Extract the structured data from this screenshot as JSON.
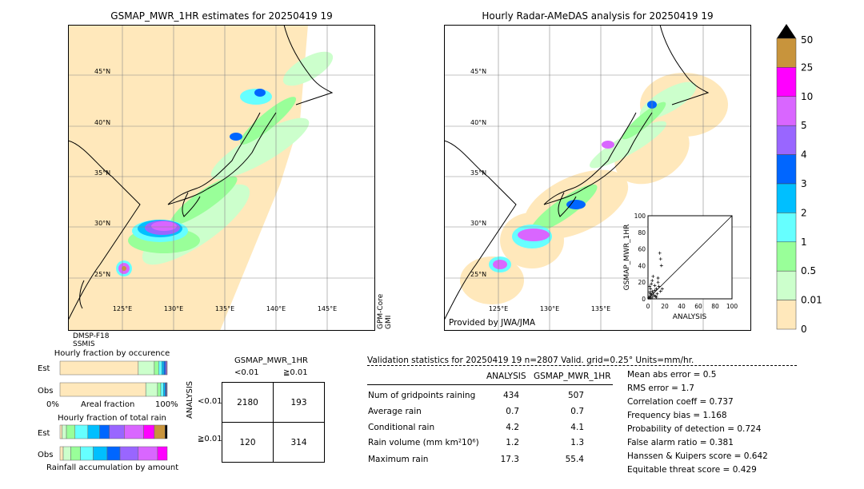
{
  "left_map": {
    "title": "GSMAP_MWR_1HR estimates for 20250419 19",
    "sensor_right": [
      "GPM-Core",
      "GMI"
    ],
    "sensor_bottom": [
      "DMSP-F18",
      "SSMIS"
    ]
  },
  "right_map": {
    "title": "Hourly Radar-AMeDAS analysis for 20250419 19",
    "credit": "Provided by JWA/JMA"
  },
  "map_axes": {
    "lat_labels": [
      "45°N",
      "40°N",
      "35°N",
      "30°N",
      "25°N"
    ],
    "lon_labels": [
      "125°E",
      "130°E",
      "135°E",
      "140°E",
      "145°E"
    ],
    "right_lon_labels": [
      "125°E",
      "130°E",
      "135°E"
    ]
  },
  "colorbar": {
    "labels": [
      "50",
      "25",
      "10",
      "5",
      "4",
      "3",
      "2",
      "1",
      "0.5",
      "0.01",
      "0"
    ],
    "colors": [
      "#c8943c",
      "#ff00ff",
      "#d966ff",
      "#9966ff",
      "#0066ff",
      "#00bfff",
      "#66ffff",
      "#99ff99",
      "#ccffcc",
      "#ffe8bb"
    ]
  },
  "chart_data": [
    {
      "type": "scatter",
      "xlabel": "ANALYSIS",
      "ylabel": "GSMAP_MWR_1HR",
      "xlim": [
        0,
        100
      ],
      "ylim": [
        0,
        100
      ],
      "ticks": [
        "0",
        "20",
        "40",
        "60",
        "80",
        "100"
      ],
      "points": [
        [
          1,
          1
        ],
        [
          2,
          3
        ],
        [
          3,
          1
        ],
        [
          4,
          5
        ],
        [
          2,
          8
        ],
        [
          5,
          2
        ],
        [
          6,
          7
        ],
        [
          3,
          12
        ],
        [
          7,
          4
        ],
        [
          8,
          10
        ],
        [
          4,
          18
        ],
        [
          9,
          3
        ],
        [
          10,
          12
        ],
        [
          5,
          22
        ],
        [
          11,
          6
        ],
        [
          12,
          25
        ],
        [
          6,
          27
        ],
        [
          13,
          15
        ],
        [
          14,
          55
        ],
        [
          15,
          48
        ],
        [
          16,
          40
        ],
        [
          12,
          20
        ],
        [
          8,
          16
        ],
        [
          3,
          6
        ],
        [
          10,
          2
        ],
        [
          15,
          9
        ],
        [
          17,
          12
        ],
        [
          2,
          15
        ],
        [
          5,
          9
        ]
      ]
    },
    {
      "type": "bar",
      "title": "Hourly fraction by occurence",
      "rows": [
        "Est",
        "Obs"
      ],
      "xlabel": "Areal fraction",
      "x_left": "0%",
      "x_right": "100%",
      "series": [
        {
          "name": "Est",
          "values": [
            0.73,
            0.15,
            0.04,
            0.03,
            0.02,
            0.015,
            0.01,
            0.005
          ]
        },
        {
          "name": "Obs",
          "values": [
            0.8,
            0.11,
            0.03,
            0.025,
            0.015,
            0.01,
            0.007,
            0.003
          ]
        }
      ]
    },
    {
      "type": "bar",
      "title": "Hourly fraction of total rain",
      "rows": [
        "Est",
        "Obs"
      ],
      "xlabel": "Rainfall accumulation by amount",
      "series": [
        {
          "name": "Est",
          "values": [
            0.02,
            0.04,
            0.08,
            0.12,
            0.11,
            0.09,
            0.14,
            0.18,
            0.1,
            0.1,
            0.02
          ]
        },
        {
          "name": "Obs",
          "values": [
            0.03,
            0.07,
            0.09,
            0.12,
            0.13,
            0.12,
            0.17,
            0.18,
            0.09
          ]
        }
      ]
    }
  ],
  "contingency": {
    "title": "GSMAP_MWR_1HR",
    "col_labels": [
      "<0.01",
      "≧0.01"
    ],
    "row_labels": [
      "<0.01",
      "≧0.01"
    ],
    "side_label": "ANALYSIS",
    "cells": [
      "2180",
      "193",
      "120",
      "314"
    ]
  },
  "validation": {
    "header": "Validation statistics for 20250419 19  n=2807 Valid. grid=0.25° Units=mm/hr.",
    "col_analysis": "ANALYSIS",
    "col_gsmap": "GSMAP_MWR_1HR",
    "rows": [
      {
        "label": "Num of gridpoints raining",
        "analysis": "434",
        "gsmap": "507"
      },
      {
        "label": "Average rain",
        "analysis": "0.7",
        "gsmap": "0.7"
      },
      {
        "label": "Conditional rain",
        "analysis": "4.2",
        "gsmap": "4.1"
      },
      {
        "label": "Rain volume (mm km²10⁶)",
        "analysis": "1.2",
        "gsmap": "1.3"
      },
      {
        "label": "Maximum rain",
        "analysis": "17.3",
        "gsmap": "55.4"
      }
    ],
    "scores": [
      "Mean abs error =    0.5",
      "RMS error =    1.7",
      "Correlation coeff =  0.737",
      "Frequency bias =  1.168",
      "Probability of detection =  0.724",
      "False alarm ratio =  0.381",
      "Hanssen & Kuipers score =  0.642",
      "Equitable threat score =  0.429"
    ]
  }
}
